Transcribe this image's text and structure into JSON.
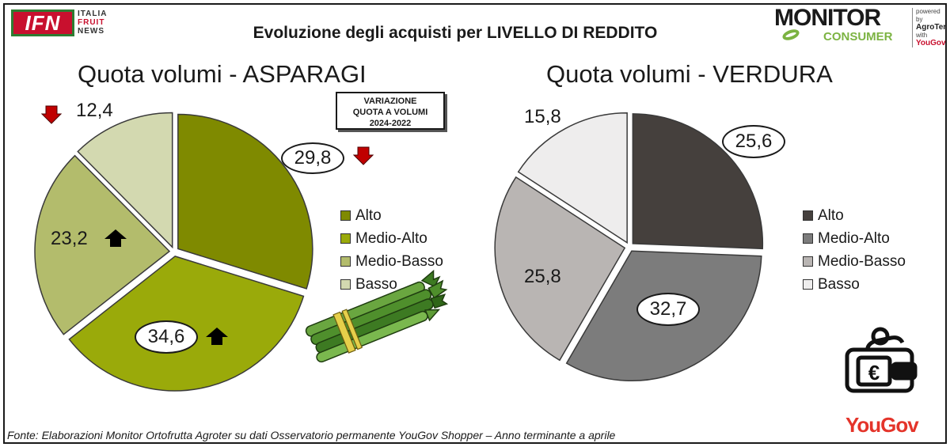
{
  "logo_ifn": {
    "text": "IFN",
    "side": [
      "ITALIA",
      "FRUIT",
      "NEWS"
    ]
  },
  "logo_monitor": {
    "word": "MONITOR",
    "sub": "CONSUMER",
    "powered_by": "powered by",
    "brand": "AgroTer",
    "with": "with",
    "partner": "YouGov"
  },
  "title": "Evoluzione degli acquisti per LIVELLO DI REDDITO",
  "variation_box": {
    "line1": "VARIAZIONE",
    "line2": "QUOTA A VOLUMI",
    "line3": "2024-2022"
  },
  "legend_labels": [
    "Alto",
    "Medio-Alto",
    "Medio-Basso",
    "Basso"
  ],
  "colors": {
    "asparagi": [
      "#7f8a00",
      "#9aaa0a",
      "#b3bc6c",
      "#d3d9b0"
    ],
    "verdura": [
      "#45403d",
      "#7c7c7c",
      "#b9b5b3",
      "#eeeded"
    ],
    "arrow_down": "#c00000",
    "arrow_up": "#000000"
  },
  "chart_data": [
    {
      "type": "pie",
      "title": "Quota volumi - ASPARAGI",
      "categories": [
        "Alto",
        "Medio-Alto",
        "Medio-Basso",
        "Basso"
      ],
      "values": [
        29.8,
        34.6,
        23.2,
        12.4
      ],
      "value_labels": [
        "29,8",
        "34,6",
        "23,2",
        "12,4"
      ],
      "variation": [
        "down",
        "up",
        "up",
        "down"
      ],
      "legend": "right"
    },
    {
      "type": "pie",
      "title": "Quota volumi - VERDURA",
      "categories": [
        "Alto",
        "Medio-Alto",
        "Medio-Basso",
        "Basso"
      ],
      "values": [
        25.6,
        32.7,
        25.8,
        15.8
      ],
      "value_labels": [
        "25,6",
        "32,7",
        "25,8",
        "15,8"
      ],
      "legend": "right"
    }
  ],
  "source": "Fonte: Elaborazioni Monitor Ortofrutta Agroter su dati Osservatorio permanente YouGov Shopper – Anno terminante a aprile",
  "footer_logo": "YouGov",
  "icons": [
    "down-arrow-icon",
    "up-arrow-icon",
    "asparagus-icon",
    "wallet-euro-icon"
  ]
}
